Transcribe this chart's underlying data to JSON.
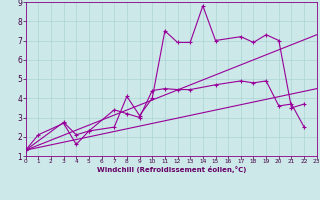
{
  "xlabel": "Windchill (Refroidissement éolien,°C)",
  "bg_color": "#cce8e8",
  "grid_color": "#aad4d4",
  "line_color": "#990099",
  "x_ticks": [
    0,
    1,
    2,
    3,
    4,
    5,
    6,
    7,
    8,
    9,
    10,
    11,
    12,
    13,
    14,
    15,
    16,
    17,
    18,
    19,
    20,
    21,
    22,
    23
  ],
  "y_ticks": [
    1,
    2,
    3,
    4,
    5,
    6,
    7,
    8,
    9
  ],
  "xlim": [
    0,
    23
  ],
  "ylim": [
    1,
    9
  ],
  "line1_x": [
    0,
    1,
    3,
    4,
    5,
    7,
    8,
    9,
    10,
    11,
    12,
    13,
    14,
    15,
    17,
    18,
    19,
    20,
    21,
    22
  ],
  "line1_y": [
    1.3,
    2.1,
    2.7,
    1.6,
    2.3,
    2.5,
    4.1,
    3.1,
    4.0,
    7.5,
    6.9,
    6.9,
    8.8,
    7.0,
    7.2,
    6.9,
    7.3,
    7.0,
    3.5,
    3.7
  ],
  "line2_x": [
    0,
    3,
    4,
    5,
    7,
    8,
    9,
    10,
    11,
    12,
    13,
    15,
    17,
    18,
    19,
    20,
    21,
    22
  ],
  "line2_y": [
    1.3,
    2.75,
    2.1,
    2.3,
    3.4,
    3.2,
    3.0,
    4.4,
    4.5,
    4.45,
    4.45,
    4.7,
    4.9,
    4.8,
    4.9,
    3.6,
    3.7,
    2.5
  ],
  "trend1_x": [
    0,
    23
  ],
  "trend1_y": [
    1.3,
    7.3
  ],
  "trend2_x": [
    0,
    23
  ],
  "trend2_y": [
    1.3,
    4.5
  ]
}
